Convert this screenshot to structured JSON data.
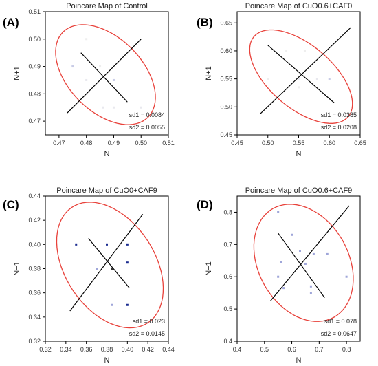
{
  "figure": {
    "panel_labels": [
      "(A)",
      "(B)",
      "(C)",
      "(D)"
    ]
  },
  "colors": {
    "ellipse": "#e8413a",
    "axes": "#000000",
    "tick_text": "#333333",
    "cross": "#000000"
  },
  "chart_data": [
    {
      "type": "scatter",
      "panel_label": "(A)",
      "title": "Poincare Map of Control",
      "xlabel": "N",
      "ylabel": "N+1",
      "xlim": [
        0.465,
        0.51
      ],
      "ylim": [
        0.465,
        0.51
      ],
      "xticks": [
        0.47,
        0.48,
        0.49,
        0.5,
        0.51
      ],
      "yticks": [
        0.47,
        0.48,
        0.49,
        0.5,
        0.51
      ],
      "xtick_labels": [
        "0.47",
        "0.48",
        "0.49",
        "0.50",
        "0.51"
      ],
      "ytick_labels": [
        "0.47",
        "0.48",
        "0.49",
        "0.50",
        "0.51"
      ],
      "points": [
        {
          "x": 0.475,
          "y": 0.49,
          "color": "#c8cbe6"
        },
        {
          "x": 0.48,
          "y": 0.5,
          "color": "#eeeeee"
        },
        {
          "x": 0.48,
          "y": 0.485,
          "color": "#e8e8ee"
        },
        {
          "x": 0.485,
          "y": 0.49,
          "color": "#eeeeee"
        },
        {
          "x": 0.49,
          "y": 0.485,
          "color": "#c8cbe6"
        },
        {
          "x": 0.486,
          "y": 0.475,
          "color": "#e8e8ee"
        },
        {
          "x": 0.49,
          "y": 0.475,
          "color": "#e8e8ee"
        },
        {
          "x": 0.5,
          "y": 0.475,
          "color": "#e8e8ee"
        }
      ],
      "ellipse_color": "#e8413a",
      "stats": [
        {
          "label": "sd1 = 0.0084"
        },
        {
          "label": "sd2 = 0.0055"
        }
      ]
    },
    {
      "type": "scatter",
      "panel_label": "(B)",
      "title": "Poincare Map of CuO0.6+CAF0",
      "xlabel": "N",
      "ylabel": "N+1",
      "xlim": [
        0.45,
        0.65
      ],
      "ylim": [
        0.45,
        0.67
      ],
      "xticks": [
        0.45,
        0.5,
        0.55,
        0.6,
        0.65
      ],
      "yticks": [
        0.45,
        0.5,
        0.55,
        0.6,
        0.65
      ],
      "xtick_labels": [
        "0.45",
        "0.50",
        "0.55",
        "0.60",
        "0.65"
      ],
      "ytick_labels": [
        "0.45",
        "0.50",
        "0.55",
        "0.60",
        "0.65"
      ],
      "points": [
        {
          "x": 0.53,
          "y": 0.6,
          "color": "#eeeeee"
        },
        {
          "x": 0.56,
          "y": 0.6,
          "color": "#eeeeee"
        },
        {
          "x": 0.5,
          "y": 0.55,
          "color": "#eeeeee"
        },
        {
          "x": 0.55,
          "y": 0.55,
          "color": "#e8e8ee"
        },
        {
          "x": 0.58,
          "y": 0.55,
          "color": "#e8e8ee"
        },
        {
          "x": 0.6,
          "y": 0.55,
          "color": "#c8cbe6"
        },
        {
          "x": 0.55,
          "y": 0.535,
          "color": "#eeeeee"
        }
      ],
      "ellipse_color": "#e8413a",
      "stats": [
        {
          "label": "sd1 = 0.0385"
        },
        {
          "label": "sd2 = 0.0208"
        }
      ]
    },
    {
      "type": "scatter",
      "panel_label": "(C)",
      "title": "Poincare Map of CuO0+CAF9",
      "xlabel": "N",
      "ylabel": "N+1",
      "xlim": [
        0.32,
        0.44
      ],
      "ylim": [
        0.32,
        0.44
      ],
      "xticks": [
        0.32,
        0.34,
        0.36,
        0.38,
        0.4,
        0.42,
        0.44
      ],
      "yticks": [
        0.32,
        0.34,
        0.36,
        0.38,
        0.4,
        0.42,
        0.44
      ],
      "xtick_labels": [
        "0.32",
        "0.34",
        "0.36",
        "0.38",
        "0.40",
        "0.42",
        "0.44"
      ],
      "ytick_labels": [
        "0.32",
        "0.34",
        "0.36",
        "0.38",
        "0.40",
        "0.42",
        "0.44"
      ],
      "points": [
        {
          "x": 0.35,
          "y": 0.4,
          "color": "#1a2b8f"
        },
        {
          "x": 0.38,
          "y": 0.4,
          "color": "#1a2b8f"
        },
        {
          "x": 0.4,
          "y": 0.4,
          "color": "#1a2b8f"
        },
        {
          "x": 0.4,
          "y": 0.385,
          "color": "#1a2b8f"
        },
        {
          "x": 0.37,
          "y": 0.38,
          "color": "#9fa6d9"
        },
        {
          "x": 0.385,
          "y": 0.38,
          "color": "#333333"
        },
        {
          "x": 0.4,
          "y": 0.35,
          "color": "#1a2b8f"
        },
        {
          "x": 0.385,
          "y": 0.35,
          "color": "#9fa6d9"
        }
      ],
      "ellipse_color": "#e8413a",
      "stats": [
        {
          "label": "sd1 = 0.023"
        },
        {
          "label": "sd2 = 0.0145"
        }
      ]
    },
    {
      "type": "scatter",
      "panel_label": "(D)",
      "title": "Poincare Map of CuO0.6+CAF9",
      "xlabel": "N",
      "ylabel": "N+1",
      "xlim": [
        0.4,
        0.85
      ],
      "ylim": [
        0.4,
        0.85
      ],
      "xticks": [
        0.4,
        0.5,
        0.6,
        0.7,
        0.8
      ],
      "yticks": [
        0.4,
        0.5,
        0.6,
        0.7,
        0.8
      ],
      "xtick_labels": [
        "0.4",
        "0.5",
        "0.6",
        "0.7",
        "0.8"
      ],
      "ytick_labels": [
        "0.4",
        "0.5",
        "0.6",
        "0.7",
        "0.8"
      ],
      "points": [
        {
          "x": 0.55,
          "y": 0.8,
          "color": "#9fa6d9"
        },
        {
          "x": 0.6,
          "y": 0.73,
          "color": "#9fa6d9"
        },
        {
          "x": 0.63,
          "y": 0.68,
          "color": "#9fa6d9"
        },
        {
          "x": 0.56,
          "y": 0.645,
          "color": "#9fa6d9"
        },
        {
          "x": 0.68,
          "y": 0.67,
          "color": "#9fa6d9"
        },
        {
          "x": 0.73,
          "y": 0.67,
          "color": "#9fa6d9"
        },
        {
          "x": 0.65,
          "y": 0.64,
          "color": "#9fa6d9"
        },
        {
          "x": 0.55,
          "y": 0.6,
          "color": "#9fa6d9"
        },
        {
          "x": 0.8,
          "y": 0.6,
          "color": "#9fa6d9"
        },
        {
          "x": 0.67,
          "y": 0.57,
          "color": "#9fa6d9"
        },
        {
          "x": 0.67,
          "y": 0.55,
          "color": "#9fa6d9"
        },
        {
          "x": 0.57,
          "y": 0.565,
          "color": "#9fa6d9"
        }
      ],
      "ellipse_color": "#e8413a",
      "stats": [
        {
          "label": "sd1 = 0.078"
        },
        {
          "label": "sd2 = 0.0647"
        }
      ]
    }
  ]
}
